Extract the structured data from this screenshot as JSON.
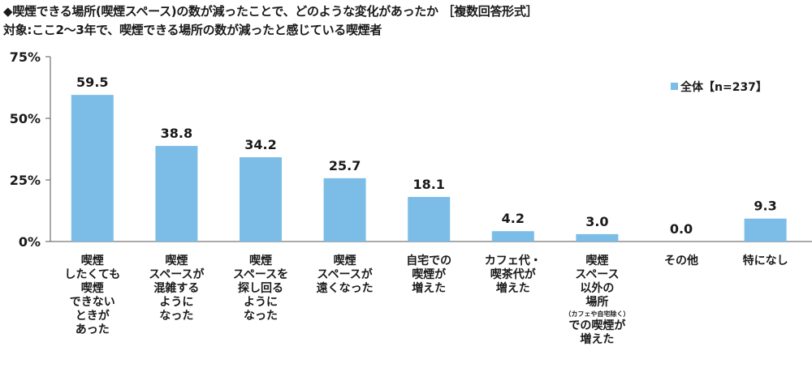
{
  "header": {
    "title": "◆喫煙できる場所(喫煙スペース)の数が減ったことで、どのような変化があったか ［複数回答形式］",
    "subtitle": "対象:ここ2～3年で、喫煙できる場所の数が減ったと感じている喫煙者"
  },
  "legend": {
    "label": "全体【n=237】"
  },
  "colors": {
    "bar": "#7cbde8",
    "axis": "#555555",
    "grid": "#555555"
  },
  "chart_data": {
    "type": "bar",
    "title": "◆喫煙できる場所(喫煙スペース)の数が減ったことで、どのような変化があったか ［複数回答形式］",
    "subtitle": "対象:ここ2～3年で、喫煙できる場所の数が減ったと感じている喫煙者",
    "ylim": [
      0,
      75
    ],
    "yticks": [
      "75%",
      "50%",
      "25%",
      "0%"
    ],
    "ytick_values": [
      75,
      50,
      25,
      0
    ],
    "grid": false,
    "legend_position": "top-right",
    "categories": [
      "喫煙\nしたくても\n喫煙\nできない\nときが\nあった",
      "喫煙\nスペースが\n混雑する\nように\nなった",
      "喫煙\nスペースを\n探し回る\nように\nなった",
      "喫煙\nスペースが\n遠くなった",
      "自宅での\n喫煙が\n増えた",
      "カフェ代・\n喫茶代が\n増えた",
      "喫煙\nスペース\n以外の\n場所",
      "その他",
      "特になし"
    ],
    "category_notes": [
      "",
      "",
      "",
      "",
      "",
      "",
      "（カフェや自宅除く）",
      "",
      ""
    ],
    "category_suffix": [
      "",
      "",
      "",
      "",
      "",
      "",
      "での喫煙が\n増えた",
      "",
      ""
    ],
    "series": [
      {
        "name": "全体【n=237】",
        "values": [
          59.5,
          38.8,
          34.2,
          25.7,
          18.1,
          4.2,
          3.0,
          0.0,
          9.3
        ]
      }
    ],
    "value_labels": [
      "59.5",
      "38.8",
      "34.2",
      "25.7",
      "18.1",
      "4.2",
      "3.0",
      "0.0",
      "9.3"
    ]
  }
}
